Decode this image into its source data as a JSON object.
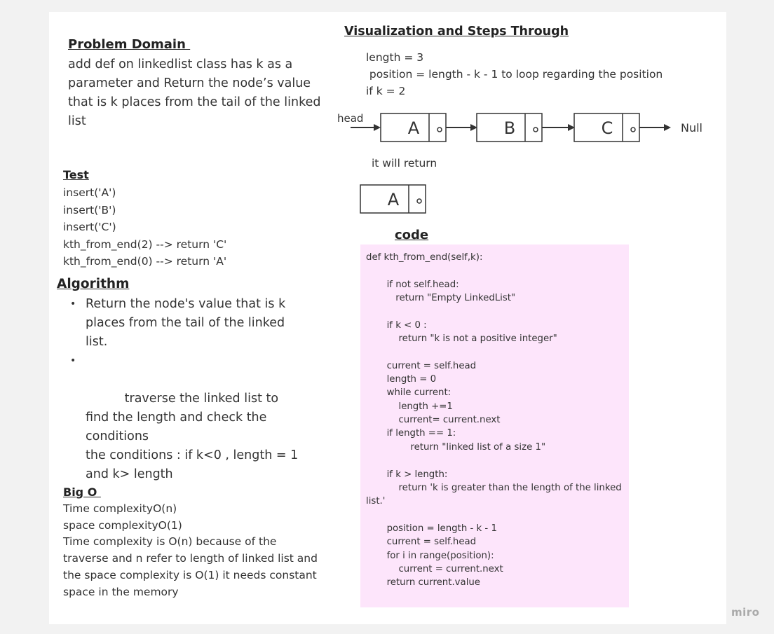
{
  "problem": {
    "title": "Problem Domain ",
    "body": "add def on linkedlist class has k as a parameter and Return the node’s value that is k places from the tail of the linked list"
  },
  "test": {
    "title": "Test",
    "lines": [
      "insert('A')",
      "insert('B')",
      "insert('C')",
      "kth_from_end(2) --> return 'C'",
      "kth_from_end(0) --> return 'A'"
    ]
  },
  "algorithm": {
    "title": "Algorithm",
    "items": [
      "Return the node's value that is k places from the tail of the linked list.",
      "    traverse the linked list to find the length and check the conditions\nthe conditions : if k<0 , length = 1 and k> length"
    ]
  },
  "bigo": {
    "title": "Big O ",
    "lines": [
      "Time complexityO(n)",
      "space complexityO(1)",
      "Time complexity is O(n) because of the traverse and n refer to length of linked list and the space complexity is O(1) it needs constant space in the memory"
    ]
  },
  "visualization": {
    "title": "Visualization and Steps Through",
    "line1": "length = 3",
    "line2": " position = length - k - 1 to loop regarding the position",
    "line3": "if k = 2",
    "head_label": "head",
    "nodes": [
      "A",
      "B",
      "C"
    ],
    "null_label": "Null",
    "return_label": "it will return",
    "return_node": "A"
  },
  "code": {
    "title": "code",
    "text": "def kth_from_end(self,k):\n\n       if not self.head:\n          return \"Empty LinkedList\"\n\n       if k < 0 :\n           return \"k is not a positive integer\"\n\n       current = self.head\n       length = 0\n       while current:\n           length +=1\n           current= current.next\n       if length == 1:\n               return \"linked list of a size 1\"\n\n       if k > length:\n           return 'k is greater than the length of the linked list.'\n\n       position = length - k - 1\n       current = self.head\n       for i in range(position):\n           current = current.next\n       return current.value"
  },
  "watermark": "miro",
  "colors": {
    "board": "#ffffff",
    "canvas": "#f2f2f2",
    "code_bg": "#fde5fb"
  }
}
